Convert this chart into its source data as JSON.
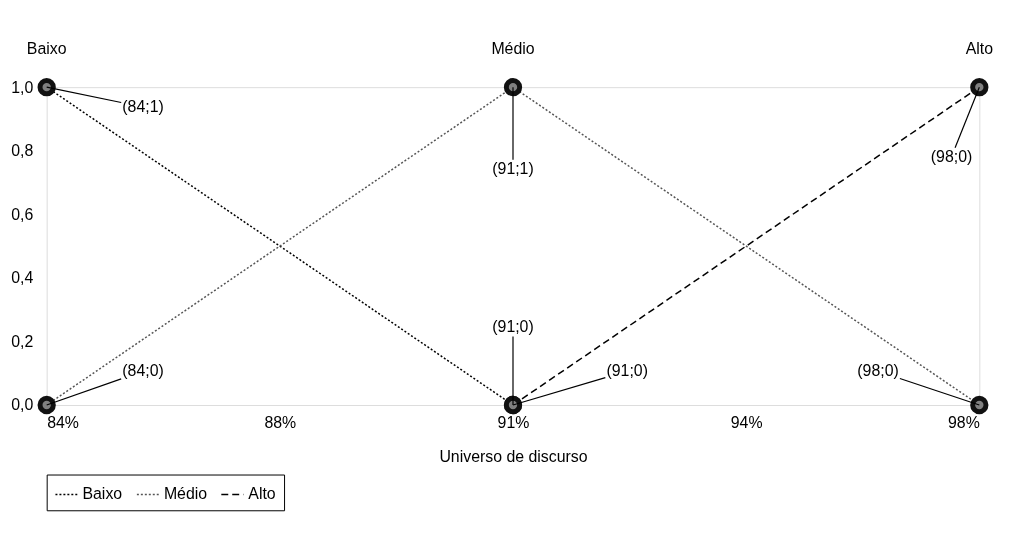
{
  "chart_data": {
    "type": "line",
    "xlabel": "Universo de discurso",
    "xlim": [
      84,
      98
    ],
    "ylim": [
      0,
      1
    ],
    "xticks": [
      {
        "value": 84,
        "label": "84%"
      },
      {
        "value": 87.5,
        "label": "88%"
      },
      {
        "value": 91,
        "label": "91%"
      },
      {
        "value": 94.5,
        "label": "94%"
      },
      {
        "value": 98,
        "label": "98%"
      }
    ],
    "yticks": [
      {
        "value": 0,
        "label": "0,0"
      },
      {
        "value": 0.2,
        "label": "0,2"
      },
      {
        "value": 0.4,
        "label": "0,4"
      },
      {
        "value": 0.6,
        "label": "0,6"
      },
      {
        "value": 0.8,
        "label": "0,8"
      },
      {
        "value": 1,
        "label": "1,0"
      }
    ],
    "series": [
      {
        "name": "Baixo",
        "color": "#000000",
        "line_style": "dotted",
        "x": [
          84,
          91
        ],
        "values": [
          1,
          0
        ]
      },
      {
        "name": "Médio",
        "color": "#555555",
        "line_style": "dotted",
        "x": [
          84,
          91,
          98
        ],
        "values": [
          0,
          1,
          0
        ]
      },
      {
        "name": "Alto",
        "color": "#000000",
        "line_style": "dashed",
        "x": [
          91,
          98
        ],
        "values": [
          0,
          1
        ]
      }
    ],
    "marker": "circle",
    "grid": false,
    "legend": "bottom",
    "annotations": [
      {
        "text": "Baixo",
        "x": 84,
        "y": 1
      },
      {
        "text": "Médio",
        "x": 91,
        "y": 1
      },
      {
        "text": "Alto",
        "x": 98,
        "y": 1
      },
      {
        "text": "(84;1)",
        "x": 84,
        "y": 1
      },
      {
        "text": "(91;1)",
        "x": 91,
        "y": 1
      },
      {
        "text": "(98;0)",
        "x": 98,
        "y": 1
      },
      {
        "text": "(84;0)",
        "x": 84,
        "y": 0
      },
      {
        "text": "(91;0)",
        "x": 91,
        "y": 0
      },
      {
        "text": "(91;0)",
        "x": 91,
        "y": 0
      },
      {
        "text": "(98;0)",
        "x": 98,
        "y": 0
      }
    ]
  }
}
